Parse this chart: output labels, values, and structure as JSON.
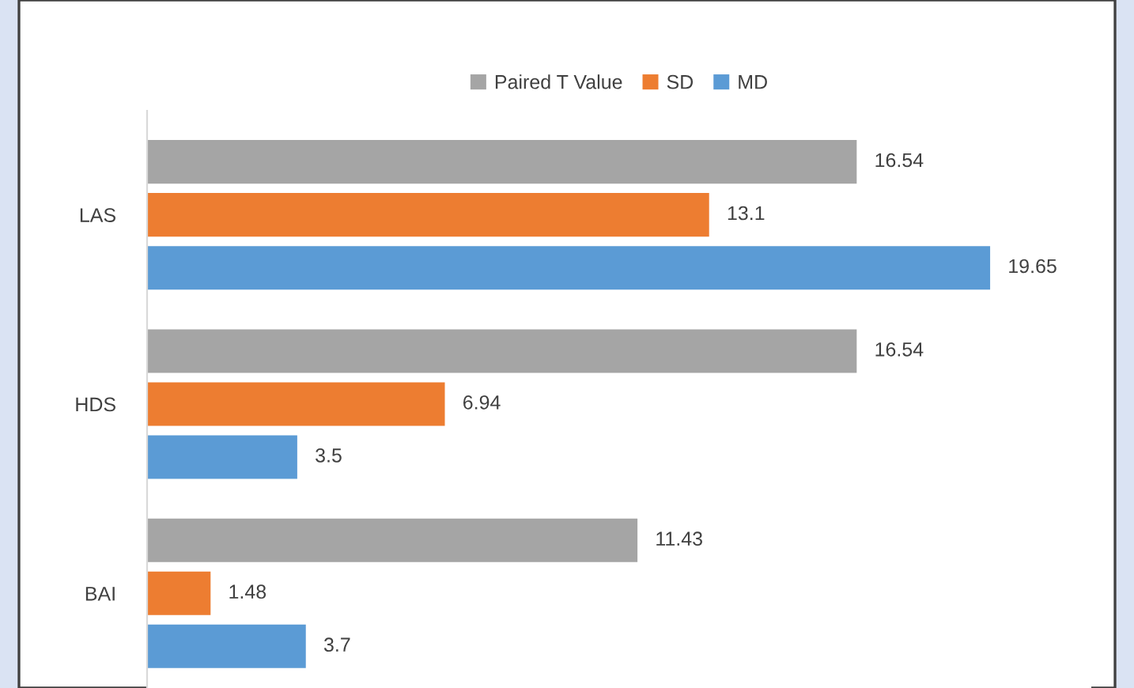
{
  "chart_data": {
    "type": "bar",
    "orientation": "horizontal",
    "categories": [
      "LAS",
      "HDS",
      "BAI"
    ],
    "series": [
      {
        "name": "Paired T Value",
        "color": "#a5a5a5",
        "values": [
          16.54,
          16.54,
          11.43
        ]
      },
      {
        "name": "SD",
        "color": "#ed7d31",
        "values": [
          13.1,
          6.94,
          1.48
        ]
      },
      {
        "name": "MD",
        "color": "#5b9bd5",
        "values": [
          19.65,
          3.5,
          3.7
        ]
      }
    ],
    "data_labels": true,
    "legend": "top",
    "grid": false
  }
}
